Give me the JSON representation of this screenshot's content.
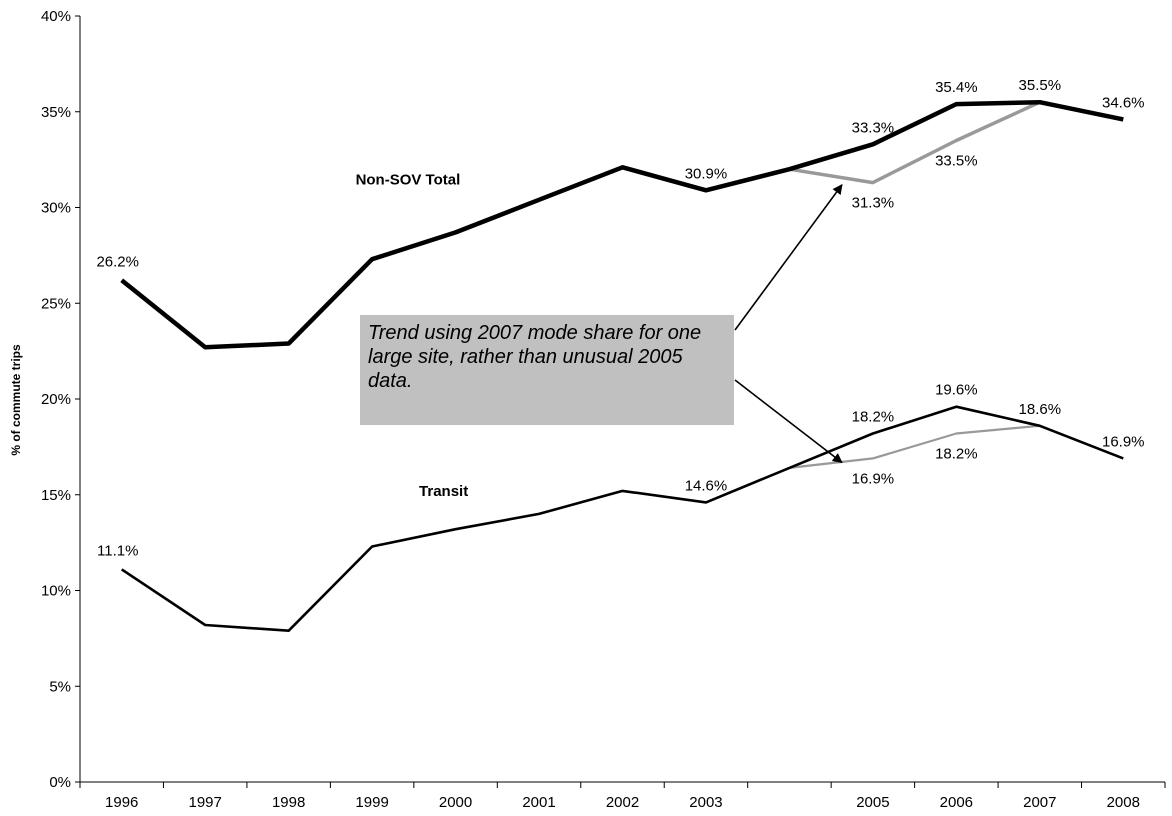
{
  "chart_data": {
    "type": "line",
    "title": "",
    "xlabel": "",
    "ylabel": "% of commute trips",
    "ylim": [
      0,
      40
    ],
    "y_ticks": [
      "0%",
      "5%",
      "10%",
      "15%",
      "20%",
      "25%",
      "30%",
      "35%",
      "40%"
    ],
    "categories": [
      "1996",
      "1997",
      "1998",
      "1999",
      "2000",
      "2001",
      "2002",
      "2003",
      "",
      "2005",
      "2006",
      "2007",
      "2008"
    ],
    "grid": false,
    "colors": {
      "main": "#000000",
      "alt": "#999999",
      "callout_bg": "#c0c0c0"
    },
    "series": [
      {
        "name": "Non-SOV Total",
        "style": "main-thick",
        "values": [
          26.2,
          22.7,
          22.9,
          27.3,
          28.7,
          30.4,
          32.1,
          30.9,
          32.0,
          33.3,
          35.4,
          35.5,
          34.6
        ],
        "labels": [
          "26.2%",
          "",
          "",
          "",
          "",
          "",
          "",
          "30.9%",
          "",
          "33.3%",
          "35.4%",
          "35.5%",
          "34.6%"
        ]
      },
      {
        "name": "",
        "style": "alt-thick",
        "values": [
          null,
          null,
          null,
          null,
          null,
          null,
          null,
          null,
          32.0,
          31.3,
          33.5,
          35.5,
          null
        ],
        "labels": [
          "",
          "",
          "",
          "",
          "",
          "",
          "",
          "",
          "",
          "31.3%",
          "33.5%",
          "",
          ""
        ]
      },
      {
        "name": "Transit",
        "style": "main-thin",
        "values": [
          11.1,
          8.2,
          7.9,
          12.3,
          13.2,
          14.0,
          15.2,
          14.6,
          16.4,
          18.2,
          19.6,
          18.6,
          16.9
        ],
        "labels": [
          "11.1%",
          "",
          "",
          "",
          "",
          "",
          "",
          "14.6%",
          "",
          "18.2%",
          "19.6%",
          "18.6%",
          "16.9%"
        ]
      },
      {
        "name": "",
        "style": "alt-thin",
        "values": [
          null,
          null,
          null,
          null,
          null,
          null,
          null,
          null,
          16.4,
          16.9,
          18.2,
          18.6,
          null
        ],
        "labels": [
          "",
          "",
          "",
          "",
          "",
          "",
          "",
          "",
          "",
          "16.9%",
          "18.2%",
          "",
          ""
        ]
      }
    ],
    "annotation": {
      "text": "Trend using 2007 mode share for one large site, rather than unusual 2005 data.",
      "arrow_targets": [
        {
          "x_index": 9.3,
          "y": 31.6
        },
        {
          "x_index": 9.3,
          "y": 17.1
        }
      ]
    }
  }
}
